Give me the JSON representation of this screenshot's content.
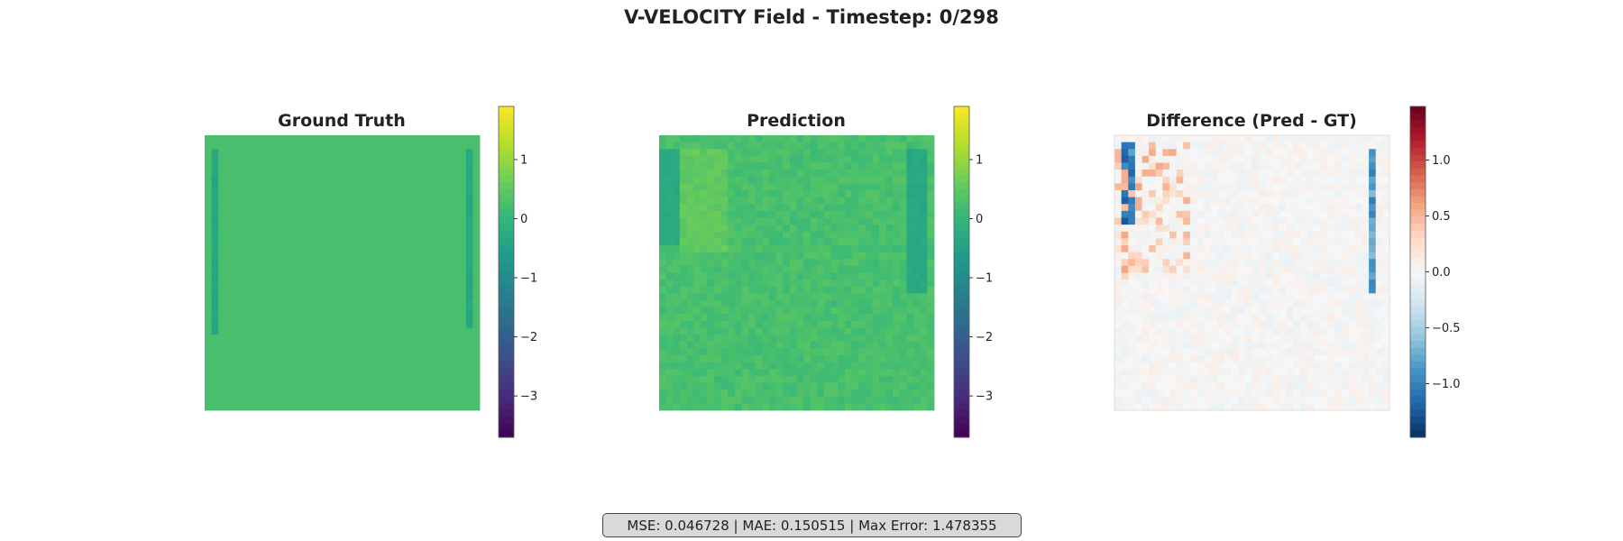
{
  "figure": {
    "title": "V-VELOCITY Field - Timestep: 0/298"
  },
  "stats": {
    "mse_label": "MSE:",
    "mse": "0.046728",
    "mae_label": "MAE:",
    "mae": "0.150515",
    "max_error_label": "Max Error:",
    "max_error": "1.478355",
    "separator": "|"
  },
  "colors": {
    "base_green": "#31b27c",
    "diff_neutral": "#f7f7f7"
  },
  "chart_data": [
    {
      "type": "heatmap",
      "title": "Ground Truth",
      "grid_size": [
        40,
        40
      ],
      "colormap": "viridis",
      "vlim": [
        -3.7,
        1.9
      ],
      "colorbar_ticks": [
        1,
        0,
        -1,
        -2,
        -3
      ],
      "colorbar_tick_labels": [
        "1",
        "0",
        "−1",
        "−2",
        "−3"
      ],
      "background_value": 0.25,
      "features": [
        {
          "description": "wall band",
          "cols": [
            1,
            1
          ],
          "rows": [
            2,
            28
          ],
          "value": -0.4
        },
        {
          "description": "wall band",
          "cols": [
            38,
            38
          ],
          "rows": [
            2,
            27
          ],
          "value": -0.4
        }
      ]
    },
    {
      "type": "heatmap",
      "title": "Prediction",
      "grid_size": [
        40,
        40
      ],
      "colormap": "viridis",
      "vlim": [
        -3.7,
        1.9
      ],
      "colorbar_ticks": [
        1,
        0,
        -1,
        -2,
        -3
      ],
      "colorbar_tick_labels": [
        "1",
        "0",
        "−1",
        "−2",
        "−3"
      ],
      "background_value": 0.25,
      "noise_amplitude": 0.15,
      "features": [
        {
          "description": "wall band",
          "cols": [
            0,
            2
          ],
          "rows": [
            2,
            15
          ],
          "value": -0.3
        },
        {
          "description": "wall band",
          "cols": [
            36,
            38
          ],
          "rows": [
            2,
            22
          ],
          "value": -0.35
        },
        {
          "description": "bright patch",
          "cols": [
            3,
            9
          ],
          "rows": [
            2,
            16
          ],
          "value": 0.55
        }
      ]
    },
    {
      "type": "heatmap",
      "title": "Difference (Pred - GT)",
      "grid_size": [
        40,
        40
      ],
      "colormap": "RdBu_r",
      "vlim": [
        -1.48,
        1.48
      ],
      "colorbar_ticks": [
        1.0,
        0.5,
        0.0,
        -0.5,
        -1.0
      ],
      "colorbar_tick_labels": [
        "1.0",
        "0.5",
        "0.0",
        "−0.5",
        "−1.0"
      ],
      "background_value": 0.0,
      "noise_amplitude": 0.1,
      "features": [
        {
          "description": "negative streak",
          "cols": [
            1,
            2
          ],
          "rows": [
            1,
            12
          ],
          "value": -1.1
        },
        {
          "description": "negative streak",
          "cols": [
            37,
            37
          ],
          "rows": [
            2,
            22
          ],
          "value": -0.9
        },
        {
          "description": "positive speckle",
          "cols": [
            0,
            10
          ],
          "rows": [
            1,
            20
          ],
          "value": 0.4
        }
      ]
    }
  ]
}
